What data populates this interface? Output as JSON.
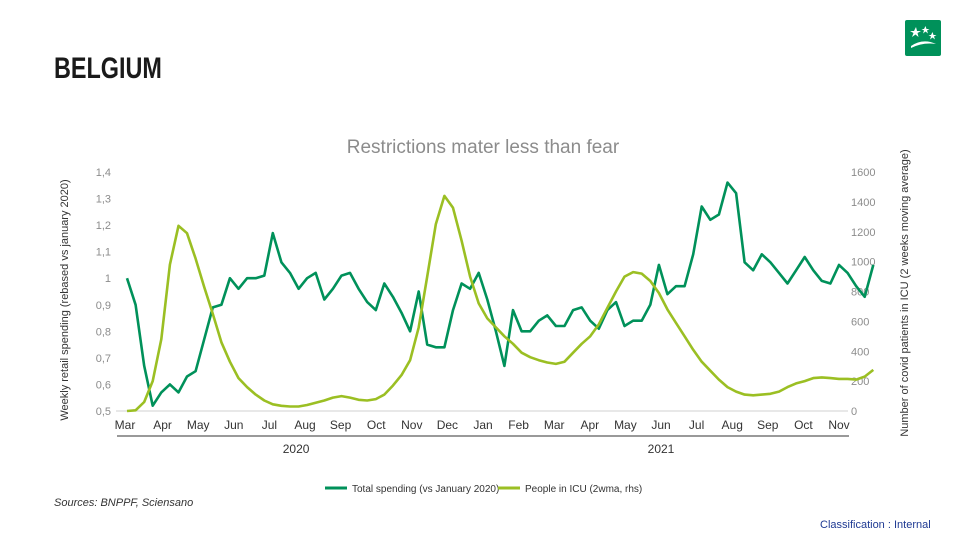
{
  "page": {
    "title": "BELGIUM",
    "sources": "Sources: BNPPF, Sciensano",
    "classification": "Classification : Internal"
  },
  "colors": {
    "spending": "#00915a",
    "icu": "#9bbf23",
    "axis_text": "#8c8c8c",
    "logo": "#00915a"
  },
  "chart_data": {
    "type": "line",
    "title": "Restrictions mater less than fear",
    "ylabel_left": "Weekly retail spending (rebased vs january 2020)",
    "ylabel_right": "Number of covid patients in ICU (2 weeks moving average)",
    "ylim_left": [
      0.5,
      1.4
    ],
    "ylim_right": [
      0,
      1600
    ],
    "yticks_left": [
      "0,5",
      "0,6",
      "0,7",
      "0,8",
      "0,9",
      "1",
      "1,1",
      "1,2",
      "1,3",
      "1,4"
    ],
    "yticks_right": [
      "0",
      "200",
      "400",
      "600",
      "800",
      "1000",
      "1200",
      "1400",
      "1600"
    ],
    "month_labels": [
      "Mar",
      "Apr",
      "May",
      "Jun",
      "Jul",
      "Aug",
      "Sep",
      "Oct",
      "Nov",
      "Dec",
      "Jan",
      "Feb",
      "Mar",
      "Apr",
      "May",
      "Jun",
      "Jul",
      "Aug",
      "Sep",
      "Oct",
      "Nov"
    ],
    "year_labels": [
      {
        "label": "2020",
        "from_month": 0,
        "to_month": 9.5
      },
      {
        "label": "2021",
        "from_month": 10,
        "to_month": 20
      }
    ],
    "grid": false,
    "legend": "bottom",
    "series": [
      {
        "name": "Total spending (vs January 2020)",
        "axis": "left",
        "points": [
          [
            0.0,
            1.0
          ],
          [
            0.25,
            0.9
          ],
          [
            0.5,
            0.67
          ],
          [
            0.75,
            0.52
          ],
          [
            1.0,
            0.57
          ],
          [
            1.25,
            0.6
          ],
          [
            1.5,
            0.57
          ],
          [
            1.75,
            0.63
          ],
          [
            2.0,
            0.65
          ],
          [
            2.25,
            0.77
          ],
          [
            2.5,
            0.89
          ],
          [
            2.75,
            0.9
          ],
          [
            3.0,
            1.0
          ],
          [
            3.25,
            0.96
          ],
          [
            3.5,
            1.0
          ],
          [
            3.75,
            1.0
          ],
          [
            4.0,
            1.01
          ],
          [
            4.25,
            1.17
          ],
          [
            4.5,
            1.06
          ],
          [
            4.75,
            1.02
          ],
          [
            5.0,
            0.96
          ],
          [
            5.25,
            1.0
          ],
          [
            5.5,
            1.02
          ],
          [
            5.75,
            0.92
          ],
          [
            6.0,
            0.96
          ],
          [
            6.25,
            1.01
          ],
          [
            6.5,
            1.02
          ],
          [
            6.75,
            0.96
          ],
          [
            7.0,
            0.91
          ],
          [
            7.25,
            0.88
          ],
          [
            7.5,
            0.98
          ],
          [
            7.75,
            0.93
          ],
          [
            8.0,
            0.87
          ],
          [
            8.25,
            0.8
          ],
          [
            8.5,
            0.95
          ],
          [
            8.75,
            0.75
          ],
          [
            9.0,
            0.74
          ],
          [
            9.25,
            0.74
          ],
          [
            9.5,
            0.88
          ],
          [
            9.75,
            0.98
          ],
          [
            10.0,
            0.96
          ],
          [
            10.25,
            1.02
          ],
          [
            10.5,
            0.92
          ],
          [
            10.75,
            0.8
          ],
          [
            11.0,
            0.67
          ],
          [
            11.25,
            0.88
          ],
          [
            11.5,
            0.8
          ],
          [
            11.75,
            0.8
          ],
          [
            12.0,
            0.84
          ],
          [
            12.25,
            0.86
          ],
          [
            12.5,
            0.82
          ],
          [
            12.75,
            0.82
          ],
          [
            13.0,
            0.88
          ],
          [
            13.25,
            0.89
          ],
          [
            13.5,
            0.84
          ],
          [
            13.75,
            0.81
          ],
          [
            14.0,
            0.88
          ],
          [
            14.25,
            0.91
          ],
          [
            14.5,
            0.82
          ],
          [
            14.75,
            0.84
          ],
          [
            15.0,
            0.84
          ],
          [
            15.25,
            0.9
          ],
          [
            15.5,
            1.05
          ],
          [
            15.75,
            0.94
          ],
          [
            16.0,
            0.97
          ],
          [
            16.25,
            0.97
          ],
          [
            16.5,
            1.09
          ],
          [
            16.75,
            1.27
          ],
          [
            17.0,
            1.22
          ],
          [
            17.25,
            1.24
          ],
          [
            17.5,
            1.36
          ],
          [
            17.75,
            1.32
          ],
          [
            18.0,
            1.06
          ],
          [
            18.25,
            1.03
          ],
          [
            18.5,
            1.09
          ],
          [
            18.75,
            1.06
          ],
          [
            19.0,
            1.02
          ],
          [
            19.25,
            0.98
          ],
          [
            19.5,
            1.03
          ],
          [
            19.75,
            1.08
          ],
          [
            20.0,
            1.03
          ],
          [
            20.25,
            0.99
          ],
          [
            20.5,
            0.98
          ],
          [
            20.75,
            1.05
          ],
          [
            21.0,
            1.02
          ],
          [
            21.25,
            0.97
          ],
          [
            21.5,
            0.93
          ],
          [
            21.75,
            1.05
          ]
        ]
      },
      {
        "name": "People in ICU (2wma, rhs)",
        "axis": "right",
        "points": [
          [
            0.0,
            0
          ],
          [
            0.25,
            5
          ],
          [
            0.5,
            60
          ],
          [
            0.75,
            200
          ],
          [
            1.0,
            480
          ],
          [
            1.25,
            980
          ],
          [
            1.5,
            1240
          ],
          [
            1.75,
            1190
          ],
          [
            2.0,
            1020
          ],
          [
            2.25,
            830
          ],
          [
            2.5,
            650
          ],
          [
            2.75,
            460
          ],
          [
            3.0,
            330
          ],
          [
            3.25,
            220
          ],
          [
            3.5,
            160
          ],
          [
            3.75,
            110
          ],
          [
            4.0,
            70
          ],
          [
            4.25,
            45
          ],
          [
            4.5,
            35
          ],
          [
            4.75,
            30
          ],
          [
            5.0,
            30
          ],
          [
            5.25,
            40
          ],
          [
            5.5,
            55
          ],
          [
            5.75,
            70
          ],
          [
            6.0,
            90
          ],
          [
            6.25,
            100
          ],
          [
            6.5,
            90
          ],
          [
            6.75,
            75
          ],
          [
            7.0,
            70
          ],
          [
            7.25,
            80
          ],
          [
            7.5,
            110
          ],
          [
            7.75,
            170
          ],
          [
            8.0,
            240
          ],
          [
            8.25,
            340
          ],
          [
            8.5,
            560
          ],
          [
            8.75,
            900
          ],
          [
            9.0,
            1250
          ],
          [
            9.25,
            1440
          ],
          [
            9.5,
            1360
          ],
          [
            9.75,
            1140
          ],
          [
            10.0,
            900
          ],
          [
            10.25,
            720
          ],
          [
            10.5,
            620
          ],
          [
            10.75,
            560
          ],
          [
            11.0,
            500
          ],
          [
            11.25,
            450
          ],
          [
            11.5,
            390
          ],
          [
            11.75,
            360
          ],
          [
            12.0,
            340
          ],
          [
            12.25,
            325
          ],
          [
            12.5,
            315
          ],
          [
            12.75,
            330
          ],
          [
            13.0,
            390
          ],
          [
            13.25,
            450
          ],
          [
            13.5,
            500
          ],
          [
            13.75,
            580
          ],
          [
            14.0,
            690
          ],
          [
            14.25,
            800
          ],
          [
            14.5,
            900
          ],
          [
            14.75,
            930
          ],
          [
            15.0,
            920
          ],
          [
            15.25,
            870
          ],
          [
            15.5,
            790
          ],
          [
            15.75,
            680
          ],
          [
            16.0,
            590
          ],
          [
            16.25,
            500
          ],
          [
            16.5,
            410
          ],
          [
            16.75,
            330
          ],
          [
            17.0,
            270
          ],
          [
            17.25,
            210
          ],
          [
            17.5,
            160
          ],
          [
            17.75,
            130
          ],
          [
            18.0,
            110
          ],
          [
            18.25,
            105
          ],
          [
            18.5,
            110
          ],
          [
            18.75,
            115
          ],
          [
            19.0,
            130
          ],
          [
            19.25,
            160
          ],
          [
            19.5,
            185
          ],
          [
            19.75,
            200
          ],
          [
            20.0,
            220
          ],
          [
            20.25,
            225
          ],
          [
            20.5,
            220
          ],
          [
            20.75,
            215
          ],
          [
            21.0,
            215
          ],
          [
            21.25,
            210
          ],
          [
            21.5,
            230
          ],
          [
            21.75,
            275
          ]
        ]
      }
    ]
  }
}
